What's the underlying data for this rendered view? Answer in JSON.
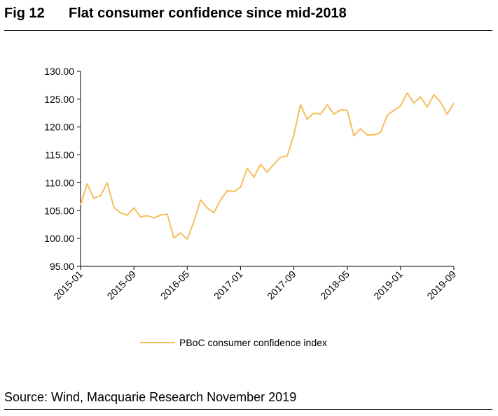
{
  "figure": {
    "number": "Fig 12",
    "title": "Flat consumer confidence since mid-2018",
    "source": "Source: Wind, Macquarie Research November 2019"
  },
  "colors": {
    "line": "#F6BE5B",
    "axis": "#000000"
  },
  "chart_data": {
    "type": "line",
    "title": "",
    "xlabel": "",
    "ylabel": "",
    "ylim": [
      95,
      130
    ],
    "ytick_step": 5,
    "ytick_format": "2dp",
    "xtick_labels": [
      "2015-01",
      "2015-09",
      "2016-05",
      "2017-01",
      "2017-09",
      "2018-05",
      "2019-01",
      "2019-09"
    ],
    "legend": "bottom-center",
    "grid": false,
    "series": [
      {
        "name": "PBoC consumer confidence index",
        "x": [
          "2015-01",
          "2015-02",
          "2015-03",
          "2015-04",
          "2015-05",
          "2015-06",
          "2015-07",
          "2015-08",
          "2015-09",
          "2015-10",
          "2015-11",
          "2015-12",
          "2016-01",
          "2016-02",
          "2016-03",
          "2016-04",
          "2016-05",
          "2016-06",
          "2016-07",
          "2016-08",
          "2016-09",
          "2016-10",
          "2016-11",
          "2016-12",
          "2017-01",
          "2017-02",
          "2017-03",
          "2017-04",
          "2017-05",
          "2017-06",
          "2017-07",
          "2017-08",
          "2017-09",
          "2017-10",
          "2017-11",
          "2017-12",
          "2018-01",
          "2018-02",
          "2018-03",
          "2018-04",
          "2018-05",
          "2018-06",
          "2018-07",
          "2018-08",
          "2018-09",
          "2018-10",
          "2018-11",
          "2018-12",
          "2019-01",
          "2019-02",
          "2019-03",
          "2019-04",
          "2019-05",
          "2019-06",
          "2019-07",
          "2019-08",
          "2019-09"
        ],
        "values": [
          106.0,
          109.8,
          107.2,
          107.7,
          110.0,
          105.6,
          104.6,
          104.2,
          105.5,
          103.9,
          104.1,
          103.7,
          104.2,
          104.4,
          100.1,
          101.0,
          99.9,
          103.0,
          106.9,
          105.5,
          104.6,
          106.9,
          108.6,
          108.4,
          109.2,
          112.6,
          111.0,
          113.3,
          111.9,
          113.3,
          114.6,
          114.8,
          118.6,
          124.0,
          121.4,
          122.5,
          122.3,
          124.0,
          122.3,
          123.1,
          123.0,
          118.4,
          119.7,
          118.6,
          118.6,
          119.0,
          122.1,
          123.0,
          123.8,
          126.1,
          124.3,
          125.4,
          123.6,
          125.8,
          124.5,
          122.3,
          124.3
        ]
      }
    ]
  }
}
